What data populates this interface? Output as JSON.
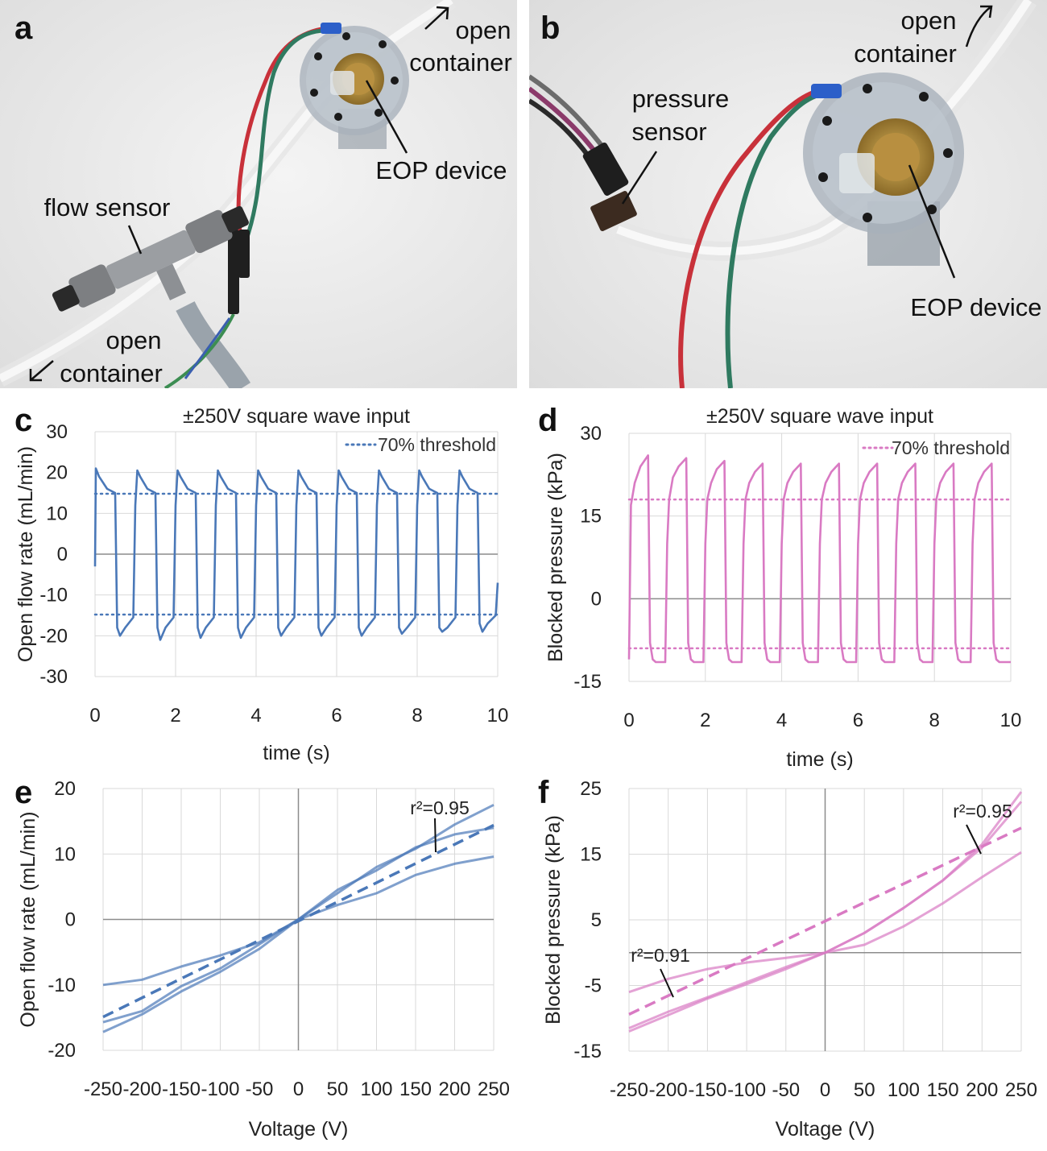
{
  "panels": {
    "a": {
      "letter": "a",
      "labels": {
        "open_container_top_1": "open",
        "open_container_top_2": "container",
        "eop_device": "EOP device",
        "flow_sensor": "flow sensor",
        "open_container_bottom_1": "open",
        "open_container_bottom_2": "container"
      }
    },
    "b": {
      "letter": "b",
      "labels": {
        "open_container_1": "open",
        "open_container_2": "container",
        "pressure_sensor_1": "pressure",
        "pressure_sensor_2": "sensor",
        "eop_device": "EOP device"
      }
    }
  },
  "colors": {
    "blue": "#4a78b8",
    "pink": "#d97ac3",
    "grid": "#d9d9d9",
    "zero_axis": "#8c8c8c"
  },
  "chart_data": [
    {
      "id": "c",
      "letter": "c",
      "type": "line",
      "title": "±250V square wave input",
      "xlabel": "time (s)",
      "ylabel": "Open flow rate (mL/min)",
      "xlim": [
        0,
        10
      ],
      "ylim": [
        -30,
        30
      ],
      "xticks": [
        0,
        2,
        4,
        6,
        8,
        10
      ],
      "yticks": [
        30,
        20,
        10,
        0,
        -10,
        -20,
        -30
      ],
      "xtick_labels": [
        "0",
        "2",
        "4",
        "6",
        "8",
        "10"
      ],
      "ytick_labels": [
        "30",
        "20",
        "10",
        "0",
        "-10",
        "-20",
        "-30"
      ],
      "grid": true,
      "legend": {
        "position": "top-right",
        "label": "70% threshold"
      },
      "thresholds": [
        14.8,
        -14.8
      ],
      "color": "#4a78b8",
      "series": [
        {
          "x": [
            0,
            0.02,
            0.1,
            0.3,
            0.5,
            0.55,
            0.62,
            0.75,
            0.95,
            1.0,
            1.05,
            1.12,
            1.3,
            1.5,
            1.55,
            1.62,
            1.75,
            1.95,
            2.0,
            2.05,
            2.12,
            2.3,
            2.5,
            2.55,
            2.62,
            2.75,
            2.95,
            3.0,
            3.05,
            3.12,
            3.3,
            3.5,
            3.55,
            3.62,
            3.75,
            3.95,
            4.0,
            4.05,
            4.12,
            4.3,
            4.5,
            4.55,
            4.62,
            4.75,
            4.95,
            5.0,
            5.05,
            5.12,
            5.3,
            5.5,
            5.55,
            5.62,
            5.75,
            5.95,
            6.0,
            6.05,
            6.12,
            6.3,
            6.5,
            6.55,
            6.62,
            6.75,
            6.95,
            7.0,
            7.05,
            7.12,
            7.3,
            7.5,
            7.55,
            7.62,
            7.75,
            7.95,
            8.0,
            8.05,
            8.12,
            8.3,
            8.5,
            8.55,
            8.62,
            8.75,
            8.95,
            9.0,
            9.05,
            9.12,
            9.3,
            9.5,
            9.55,
            9.62,
            9.75,
            9.95,
            10.0
          ],
          "y": [
            -3,
            21,
            19,
            16,
            15,
            -18,
            -20,
            -18,
            -15.5,
            12,
            20.5,
            19,
            16,
            15,
            -18,
            -21,
            -18,
            -15.5,
            12,
            20.5,
            19,
            16,
            15,
            -18,
            -20.5,
            -18,
            -15.5,
            12,
            20.5,
            19,
            16,
            15,
            -18,
            -20.5,
            -18,
            -15.5,
            12,
            20.5,
            19,
            16,
            15,
            -18,
            -20,
            -18,
            -15.5,
            12,
            20.5,
            19,
            16,
            15,
            -18,
            -20,
            -18,
            -15.5,
            12,
            20.5,
            19,
            16,
            15,
            -18,
            -20,
            -18,
            -15.5,
            12,
            20.5,
            19,
            16,
            15,
            -18,
            -19.5,
            -18,
            -15.5,
            12,
            20.5,
            19,
            16,
            15,
            -18,
            -19,
            -18,
            -15.5,
            12,
            20.5,
            19,
            16,
            15,
            -17,
            -19,
            -17,
            -15,
            -7
          ]
        }
      ]
    },
    {
      "id": "d",
      "letter": "d",
      "type": "line",
      "title": "±250V square wave input",
      "xlabel": "time (s)",
      "ylabel": "Blocked pressure (kPa)",
      "xlim": [
        0,
        10
      ],
      "ylim": [
        -15,
        30
      ],
      "xticks": [
        0,
        2,
        4,
        6,
        8,
        10
      ],
      "yticks": [
        30,
        15,
        0,
        -15
      ],
      "xtick_labels": [
        "0",
        "2",
        "4",
        "6",
        "8",
        "10"
      ],
      "ytick_labels": [
        "30",
        "15",
        "0",
        "-15"
      ],
      "grid": true,
      "legend": {
        "position": "top-right",
        "label": "70% threshold"
      },
      "thresholds": [
        18,
        -9
      ],
      "color": "#d97ac3",
      "series": [
        {
          "x": [
            0,
            0.05,
            0.15,
            0.3,
            0.5,
            0.55,
            0.62,
            0.7,
            0.95,
            1.0,
            1.05,
            1.15,
            1.3,
            1.5,
            1.55,
            1.62,
            1.7,
            1.95,
            2.0,
            2.05,
            2.15,
            2.3,
            2.5,
            2.55,
            2.62,
            2.7,
            2.95,
            3.0,
            3.05,
            3.15,
            3.3,
            3.5,
            3.55,
            3.62,
            3.7,
            3.95,
            4.0,
            4.05,
            4.15,
            4.3,
            4.5,
            4.55,
            4.62,
            4.7,
            4.95,
            5.0,
            5.05,
            5.15,
            5.3,
            5.5,
            5.55,
            5.62,
            5.7,
            5.95,
            6.0,
            6.05,
            6.15,
            6.3,
            6.5,
            6.55,
            6.62,
            6.7,
            6.95,
            7.0,
            7.05,
            7.15,
            7.3,
            7.5,
            7.55,
            7.62,
            7.7,
            7.95,
            8.0,
            8.05,
            8.15,
            8.3,
            8.5,
            8.55,
            8.62,
            8.7,
            8.95,
            9.0,
            9.05,
            9.15,
            9.3,
            9.5,
            9.55,
            9.62,
            9.7,
            9.95,
            10.0
          ],
          "y": [
            -11,
            17,
            21,
            24,
            26,
            -8,
            -11,
            -11.5,
            -11.5,
            10,
            18,
            22,
            24,
            25.5,
            -8,
            -11,
            -11.5,
            -11.5,
            10,
            18,
            21,
            23.5,
            25,
            -8,
            -11,
            -11.5,
            -11.5,
            10,
            18,
            21,
            23,
            24.5,
            -8,
            -11,
            -11.5,
            -11.5,
            10,
            18,
            21,
            23,
            24.5,
            -8,
            -11,
            -11.5,
            -11.5,
            10,
            18,
            21,
            23,
            24.5,
            -8,
            -11,
            -11.5,
            -11.5,
            10,
            18,
            21,
            23,
            24.5,
            -8,
            -11,
            -11.5,
            -11.5,
            10,
            18,
            21,
            23,
            24.5,
            -8,
            -11,
            -11.5,
            -11.5,
            10,
            18,
            21,
            23,
            24.5,
            -8,
            -11,
            -11.5,
            -11.5,
            10,
            18,
            21,
            23,
            24.5,
            -8,
            -11,
            -11.5,
            -11.5,
            -11.5
          ]
        }
      ]
    },
    {
      "id": "e",
      "letter": "e",
      "type": "line",
      "title": "",
      "xlabel": "Voltage (V)",
      "ylabel": "Open flow rate (mL/min)",
      "xlim": [
        -250,
        250
      ],
      "ylim": [
        -20,
        20
      ],
      "xticks": [
        -250,
        -200,
        -150,
        -100,
        -50,
        0,
        50,
        100,
        150,
        200,
        250
      ],
      "yticks": [
        20,
        10,
        0,
        -10,
        -20
      ],
      "xtick_labels": [
        "-250",
        "-200",
        "-150",
        "-100",
        "-50",
        "0",
        "50",
        "100",
        "150",
        "200",
        "250"
      ],
      "ytick_labels": [
        "20",
        "10",
        "0",
        "-10",
        "-20"
      ],
      "grid": true,
      "color": "#4a78b8",
      "x": [
        -250,
        -200,
        -150,
        -100,
        -50,
        0,
        50,
        100,
        150,
        200,
        250
      ],
      "series": [
        {
          "y": [
            -17.2,
            -14.5,
            -11,
            -8,
            -4.5,
            0,
            4,
            8,
            10.8,
            14.5,
            17.5
          ]
        },
        {
          "y": [
            -15.7,
            -14,
            -10.2,
            -7.5,
            -3.8,
            0,
            4.5,
            7.5,
            11,
            13,
            14
          ]
        },
        {
          "y": [
            -10,
            -9.2,
            -7.2,
            -5.5,
            -3.5,
            0,
            2.2,
            4,
            6.8,
            8.5,
            9.6
          ]
        }
      ],
      "fit": {
        "x": [
          -250,
          250
        ],
        "y": [
          -14.9,
          14.4
        ],
        "label": "r²=0.95"
      }
    },
    {
      "id": "f",
      "letter": "f",
      "type": "line",
      "title": "",
      "xlabel": "Voltage (V)",
      "ylabel": "Blocked pressure (kPa)",
      "xlim": [
        -250,
        250
      ],
      "ylim": [
        -15,
        25
      ],
      "xticks": [
        -250,
        -200,
        -150,
        -100,
        -50,
        0,
        50,
        100,
        150,
        200,
        250
      ],
      "yticks": [
        25,
        15,
        5,
        -5,
        -15
      ],
      "xtick_labels": [
        "-250",
        "-200",
        "-150",
        "-100",
        "-50",
        "0",
        "50",
        "100",
        "150",
        "200",
        "250"
      ],
      "ytick_labels": [
        "25",
        "15",
        "5",
        "-5",
        "-15"
      ],
      "grid": true,
      "color": "#d97ac3",
      "x": [
        -250,
        -200,
        -150,
        -100,
        -50,
        0,
        50,
        100,
        150,
        200,
        250
      ],
      "series": [
        {
          "y": [
            -12,
            -9.5,
            -7,
            -4.8,
            -2.5,
            0,
            3,
            6.8,
            11,
            16.5,
            24.5
          ]
        },
        {
          "y": [
            -11.5,
            -9,
            -6.8,
            -4.5,
            -2.2,
            0,
            3,
            6.8,
            11,
            16,
            23
          ]
        },
        {
          "y": [
            -6,
            -4,
            -2.5,
            -1.5,
            -0.8,
            0,
            1.2,
            4,
            7.5,
            11.5,
            15.3
          ]
        }
      ],
      "fit": {
        "x": [
          -250,
          250
        ],
        "y": [
          -9.4,
          19
        ],
        "label": "r²=0.95"
      },
      "fit_label_2": "r²=0.91"
    }
  ]
}
